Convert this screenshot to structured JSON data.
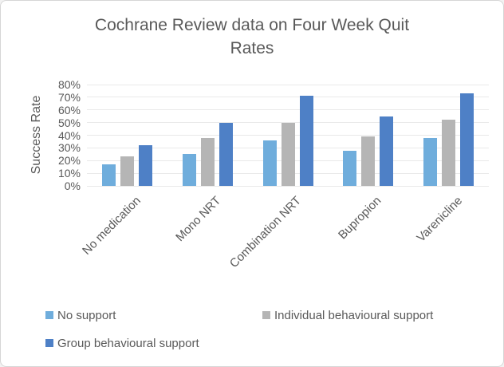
{
  "window": {
    "background": "#ffffff",
    "border_color": "#d6d6d6"
  },
  "chart_data": {
    "type": "bar",
    "title": "Cochrane Review data on Four Week Quit Rates",
    "title_lines": [
      "Cochrane Review data on Four Week Quit",
      "Rates"
    ],
    "ylabel": "Success Rate",
    "xlabel": "",
    "ylim": [
      0,
      80
    ],
    "ytick_step": 10,
    "ytick_labels": [
      "0%",
      "10%",
      "20%",
      "30%",
      "40%",
      "50%",
      "60%",
      "70%",
      "80%"
    ],
    "grid": true,
    "legend_position": "bottom",
    "categories": [
      "No medication",
      "Mono NRT",
      "Combination NRT",
      "Bupropion",
      "Varenicline"
    ],
    "series": [
      {
        "name": "No support",
        "color": "#6faddc",
        "values": [
          17,
          25,
          36,
          28,
          38
        ]
      },
      {
        "name": "Individual behavioural support",
        "color": "#b5b5b5",
        "values": [
          23,
          38,
          50,
          39,
          52
        ]
      },
      {
        "name": "Group behavioural support",
        "color": "#4e80c6",
        "values": [
          32,
          50,
          71,
          55,
          73
        ]
      }
    ]
  }
}
